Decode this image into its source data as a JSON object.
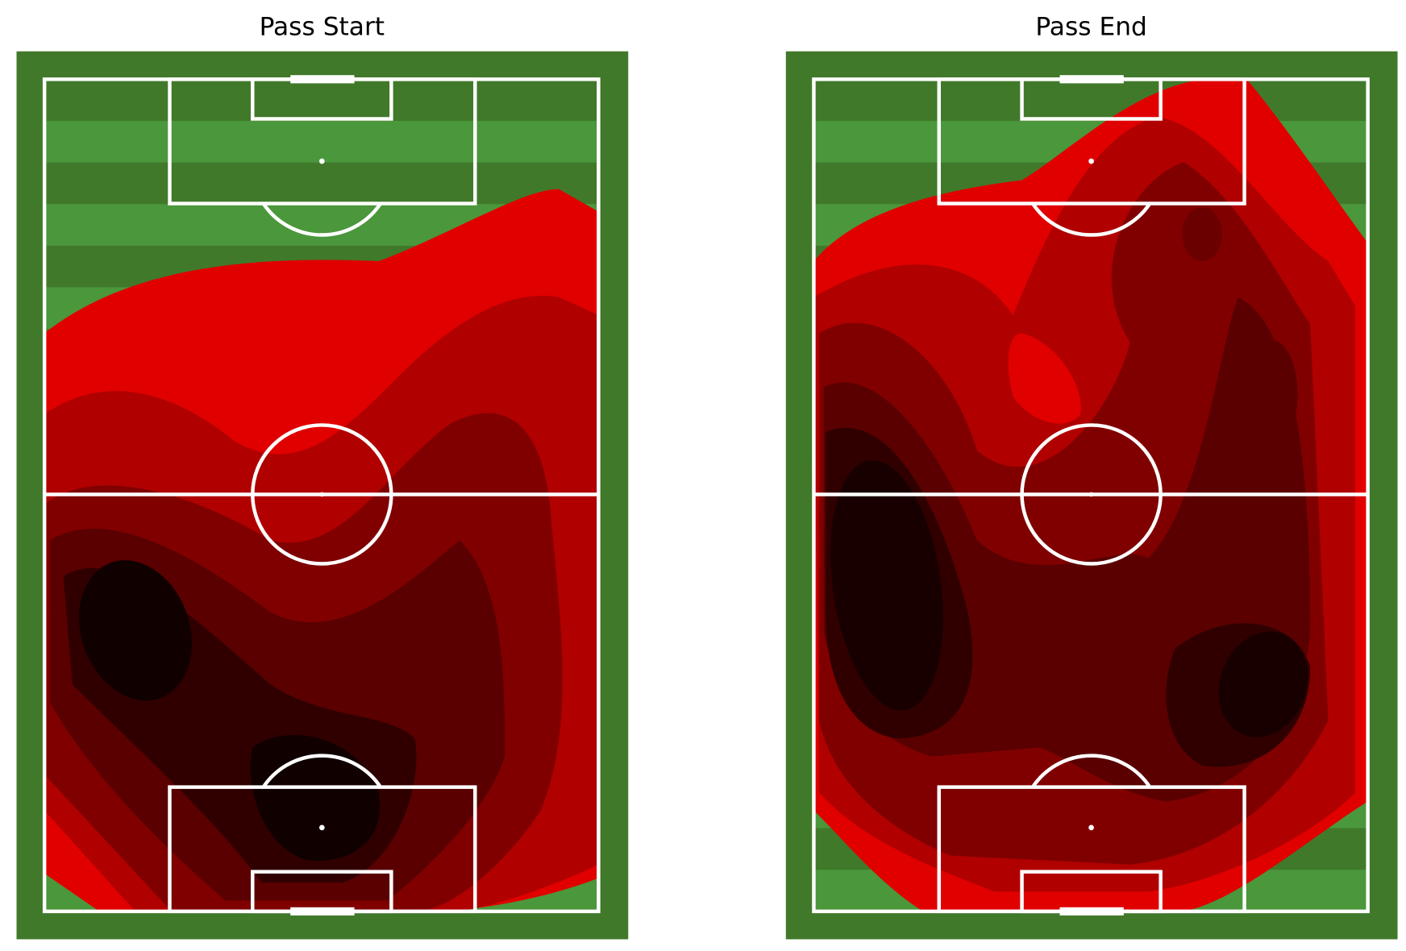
{
  "chart_data": [
    {
      "type": "heatmap",
      "title": "Pass Start"
    },
    {
      "type": "heatmap",
      "title": "Pass End"
    }
  ]
}
